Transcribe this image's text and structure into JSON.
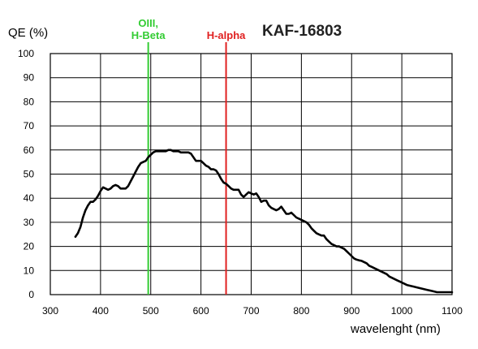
{
  "chart_data": {
    "type": "line",
    "title": "KAF-16803",
    "ylabel": "QE (%)",
    "xlabel": "wavelenght (nm)",
    "xlim": [
      300,
      1100
    ],
    "ylim": [
      0,
      100
    ],
    "x_ticks": [
      300,
      400,
      500,
      600,
      700,
      800,
      900,
      1000,
      1100
    ],
    "y_ticks": [
      0,
      10,
      20,
      30,
      40,
      50,
      60,
      70,
      80,
      90,
      100
    ],
    "grid": true,
    "series": [
      {
        "color": "#000000",
        "x": [
          350,
          355,
          360,
          365,
          370,
          375,
          380,
          385,
          390,
          395,
          400,
          405,
          410,
          415,
          420,
          425,
          430,
          435,
          440,
          445,
          450,
          455,
          460,
          465,
          470,
          475,
          480,
          485,
          490,
          495,
          500,
          505,
          510,
          515,
          520,
          525,
          530,
          535,
          540,
          545,
          550,
          555,
          560,
          565,
          570,
          575,
          580,
          585,
          590,
          595,
          600,
          605,
          610,
          615,
          620,
          625,
          630,
          635,
          640,
          645,
          650,
          655,
          660,
          665,
          670,
          675,
          680,
          685,
          690,
          695,
          700,
          705,
          710,
          715,
          720,
          725,
          730,
          735,
          740,
          745,
          750,
          755,
          760,
          765,
          770,
          775,
          780,
          785,
          790,
          795,
          800,
          805,
          810,
          815,
          820,
          825,
          830,
          835,
          840,
          845,
          850,
          855,
          860,
          865,
          870,
          875,
          880,
          885,
          890,
          895,
          900,
          905,
          910,
          915,
          920,
          925,
          930,
          935,
          940,
          945,
          950,
          955,
          960,
          965,
          970,
          975,
          980,
          990,
          1000,
          1010,
          1020,
          1030,
          1040,
          1050,
          1060,
          1070,
          1080,
          1090,
          1100
        ],
        "y": [
          24,
          25.5,
          28,
          32,
          35,
          37,
          38.5,
          38.5,
          39.5,
          41,
          43,
          44.5,
          44,
          43.5,
          44,
          45,
          45.5,
          45,
          44,
          44,
          44,
          45,
          47,
          49,
          51,
          53,
          54.5,
          55,
          55.5,
          57,
          58,
          59,
          59.5,
          59.5,
          59.5,
          59.5,
          59.5,
          60,
          60,
          59.5,
          59.5,
          59.5,
          59,
          59,
          59,
          59,
          58.5,
          57,
          55.5,
          55.5,
          55.5,
          54.5,
          53.5,
          53,
          52,
          52,
          51.5,
          50,
          48,
          46.5,
          46,
          45,
          44,
          43.5,
          43.5,
          43.5,
          41.5,
          40.5,
          41.5,
          42.5,
          42,
          41.5,
          42,
          40.5,
          38.5,
          39,
          39,
          37,
          36,
          35.5,
          35,
          35.5,
          36.5,
          35,
          33.5,
          33.5,
          34,
          33,
          32,
          31.5,
          31,
          30.5,
          30,
          29,
          27.5,
          26.5,
          25.5,
          25,
          24.5,
          24.5,
          23,
          22,
          21,
          20.5,
          20,
          20,
          19.5,
          19,
          18,
          17,
          16,
          15,
          14.5,
          14.2,
          14,
          13.5,
          13,
          12,
          11.5,
          11,
          10.5,
          10,
          9.5,
          9,
          8.5,
          7.5,
          7,
          6,
          5,
          4,
          3.5,
          3,
          2.5,
          2,
          1.5,
          1,
          1,
          1,
          1
        ]
      }
    ],
    "markers": [
      {
        "x": 495,
        "label_lines": [
          "OIII,",
          "H-Beta"
        ],
        "color": "#33cc33"
      },
      {
        "x": 650,
        "label_lines": [
          "H-alpha"
        ],
        "color": "#e02020"
      }
    ]
  }
}
